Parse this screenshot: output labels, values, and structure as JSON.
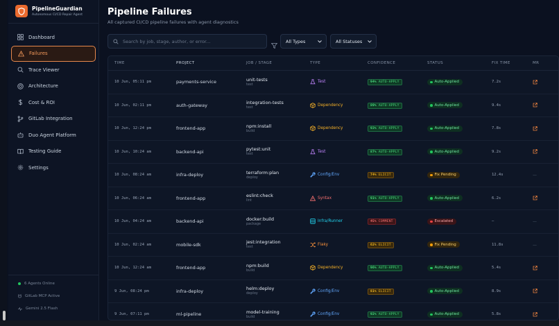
{
  "brand": {
    "title": "PipelineGuardian",
    "subtitle": "Autonomous CI/CD Repair Agent"
  },
  "nav": [
    {
      "label": "Dashboard",
      "icon": "grid-icon",
      "active": false
    },
    {
      "label": "Failures",
      "icon": "alert-triangle-icon",
      "active": true
    },
    {
      "label": "Trace Viewer",
      "icon": "search-icon",
      "active": false
    },
    {
      "label": "Architecture",
      "icon": "target-icon",
      "active": false
    },
    {
      "label": "Cost & ROI",
      "icon": "dollar-icon",
      "active": false
    },
    {
      "label": "GitLab Integration",
      "icon": "branch-icon",
      "active": false
    },
    {
      "label": "Duo Agent Platform",
      "icon": "bot-icon",
      "active": false
    },
    {
      "label": "Testing Guide",
      "icon": "book-icon",
      "active": false
    },
    {
      "label": "Settings",
      "icon": "gear-icon",
      "active": false
    }
  ],
  "sidebar_status": {
    "agents": "6 Agents Online",
    "mcp": "GitLab MCP Active",
    "model": "Gemini 2.5 Flash"
  },
  "page": {
    "title": "Pipeline Failures",
    "subtitle": "All captured CI/CD pipeline failures with agent diagnostics"
  },
  "search": {
    "placeholder": "Search by job, stage, author, or error...",
    "value": ""
  },
  "filters": {
    "types": "All Types",
    "statuses": "All Statuses"
  },
  "columns": {
    "time": "TIME",
    "project": "PROJECT",
    "job": "JOB / STAGE",
    "type": "TYPE",
    "confidence": "CONFIDENCE",
    "status": "STATUS",
    "fix_time": "FIX TIME",
    "mr": "MR"
  },
  "colors": {
    "accent": "#ea6a2e",
    "test": "#c084fc",
    "dependency": "#f5b027",
    "config": "#60a5fa",
    "syntax": "#f87171",
    "infra": "#22d3ee",
    "flaky": "#fb923c",
    "applied": "#4ade80",
    "pending": "#fbbf24",
    "escalated": "#f87171"
  },
  "rows": [
    {
      "time": "10 Jun, 05:11 pm",
      "project": "payments-service",
      "job": "unit-tests",
      "stage": "test",
      "type": "Test",
      "type_key": "test",
      "conf_pct": "94%",
      "conf_label": "AUTO-APPLY",
      "conf_key": "auto",
      "status": "Auto-Applied",
      "status_key": "applied",
      "fix_time": "7.2s",
      "mr": true
    },
    {
      "time": "10 Jun, 02:11 pm",
      "project": "auth-gateway",
      "job": "integration-tests",
      "stage": "test",
      "type": "Dependency",
      "type_key": "dependency",
      "conf_pct": "89%",
      "conf_label": "AUTO-APPLY",
      "conf_key": "auto",
      "status": "Auto-Applied",
      "status_key": "applied",
      "fix_time": "9.4s",
      "mr": true
    },
    {
      "time": "10 Jun, 12:24 pm",
      "project": "frontend-app",
      "job": "npm:install",
      "stage": "build",
      "type": "Dependency",
      "type_key": "dependency",
      "conf_pct": "93%",
      "conf_label": "AUTO-APPLY",
      "conf_key": "auto",
      "status": "Auto-Applied",
      "status_key": "applied",
      "fix_time": "7.8s",
      "mr": true
    },
    {
      "time": "10 Jun, 10:24 am",
      "project": "backend-api",
      "job": "pytest:unit",
      "stage": "test",
      "type": "Test",
      "type_key": "test",
      "conf_pct": "87%",
      "conf_label": "AUTO-APPLY",
      "conf_key": "auto",
      "status": "Auto-Applied",
      "status_key": "applied",
      "fix_time": "9.2s",
      "mr": true
    },
    {
      "time": "10 Jun, 08:24 am",
      "project": "infra-deploy",
      "job": "terraform:plan",
      "stage": "deploy",
      "type": "Config/Env",
      "type_key": "config",
      "conf_pct": "74%",
      "conf_label": "ELICIT",
      "conf_key": "elicit",
      "status": "Fix Pending",
      "status_key": "pending",
      "fix_time": "12.4s",
      "mr": false
    },
    {
      "time": "10 Jun, 06:24 am",
      "project": "frontend-app",
      "job": "eslint:check",
      "stage": "lint",
      "type": "Syntax",
      "type_key": "syntax",
      "conf_pct": "91%",
      "conf_label": "AUTO-APPLY",
      "conf_key": "auto",
      "status": "Auto-Applied",
      "status_key": "applied",
      "fix_time": "6.2s",
      "mr": true
    },
    {
      "time": "10 Jun, 04:24 am",
      "project": "backend-api",
      "job": "docker:build",
      "stage": "package",
      "type": "Infra/Runner",
      "type_key": "infra",
      "conf_pct": "45%",
      "conf_label": "COMMENT",
      "conf_key": "comment",
      "status": "Escalated",
      "status_key": "escalated",
      "fix_time": "—",
      "mr": false
    },
    {
      "time": "10 Jun, 02:24 am",
      "project": "mobile-sdk",
      "job": "jest:integration",
      "stage": "test",
      "type": "Flaky",
      "type_key": "flaky",
      "conf_pct": "62%",
      "conf_label": "ELICIT",
      "conf_key": "elicit",
      "status": "Fix Pending",
      "status_key": "pending",
      "fix_time": "11.8s",
      "mr": false
    },
    {
      "time": "10 Jun, 12:24 am",
      "project": "frontend-app",
      "job": "npm:build",
      "stage": "build",
      "type": "Dependency",
      "type_key": "dependency",
      "conf_pct": "96%",
      "conf_label": "AUTO-APPLY",
      "conf_key": "auto",
      "status": "Auto-Applied",
      "status_key": "applied",
      "fix_time": "5.4s",
      "mr": true
    },
    {
      "time": "9 Jun, 08:24 pm",
      "project": "infra-deploy",
      "job": "helm:deploy",
      "stage": "deploy",
      "type": "Config/Env",
      "type_key": "config",
      "conf_pct": "81%",
      "conf_label": "ELICIT",
      "conf_key": "elicit",
      "status": "Auto-Applied",
      "status_key": "applied",
      "fix_time": "8.9s",
      "mr": true
    },
    {
      "time": "9 Jun, 07:11 pm",
      "project": "ml-pipeline",
      "job": "model-training",
      "stage": "build",
      "type": "Config/Env",
      "type_key": "config",
      "conf_pct": "92%",
      "conf_label": "AUTO-APPLY",
      "conf_key": "auto",
      "status": "Auto-Applied",
      "status_key": "applied",
      "fix_time": "5.8s",
      "mr": true
    }
  ]
}
